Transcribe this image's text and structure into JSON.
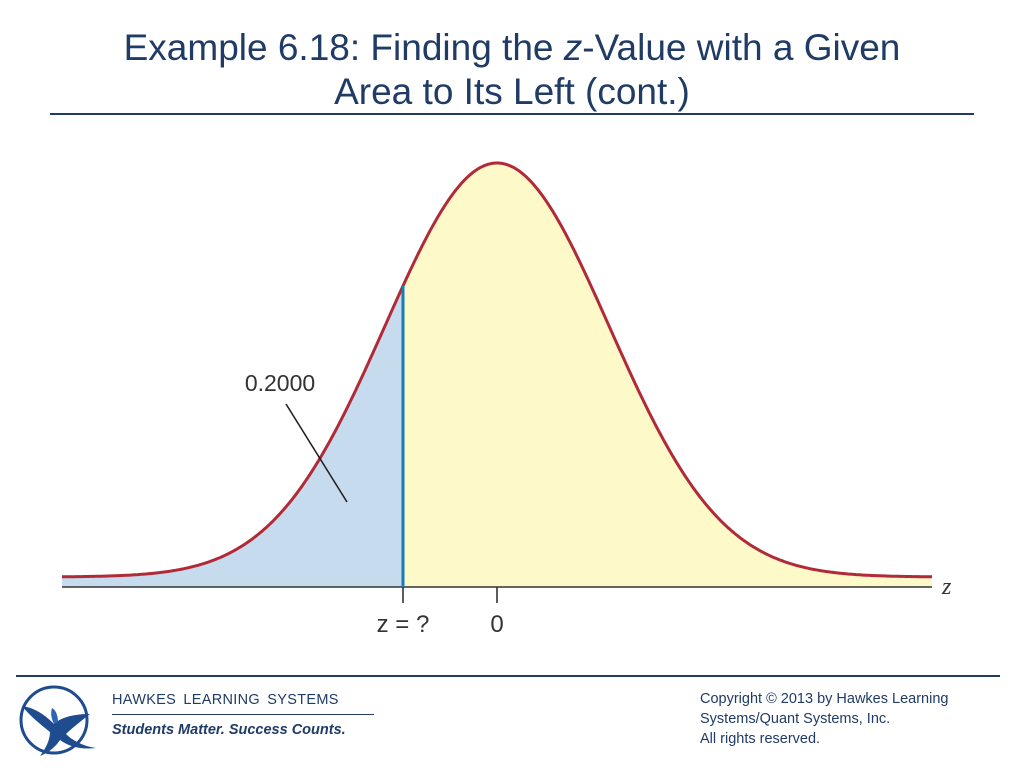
{
  "slide": {
    "title_part1": "Example 6.18: Finding the ",
    "title_italic": "z",
    "title_part2": "-Value with a Given",
    "title_line2": "Area to Its Left (cont.)"
  },
  "figure": {
    "area_label": "0.2000",
    "cutoff_label": "z = ?",
    "mean_label": "0",
    "axis_label": "z",
    "left_area_color": "#c6dcee",
    "right_area_color": "#fdf9c8",
    "curve_color": "#b02a37",
    "cutoff_line_color": "#1a7db5"
  },
  "footer": {
    "brand": "HAWKES LEARNING SYSTEMS",
    "tagline": "Students Matter. Success Counts.",
    "copyright_line1": "Copyright © 2013 by Hawkes Learning",
    "copyright_line2": "Systems/Quant Systems, Inc.",
    "copyright_line3": "All rights reserved.",
    "logo_icon": "eagle-icon"
  }
}
